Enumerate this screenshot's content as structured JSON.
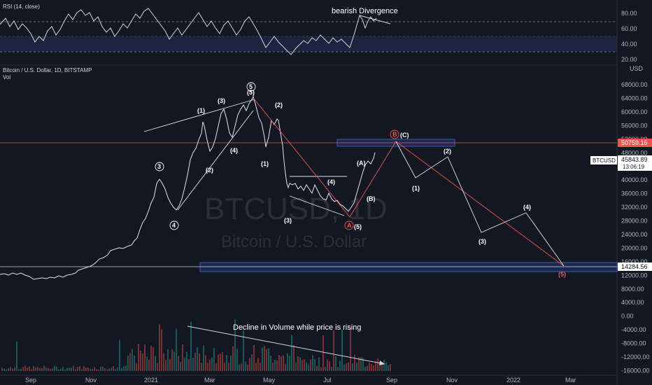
{
  "rsi": {
    "label": "RSI (14, close)",
    "levels": [
      "80.00",
      "60.00",
      "40.00",
      "20.00"
    ],
    "annotation": "bearish Divergence"
  },
  "symbol": {
    "title": "Bitcoin / U.S. Dollar, 1D, BITSTAMP",
    "vol_label": "Vol",
    "watermark_ticker": "BTCUSD, 1D",
    "watermark_name": "Bitcoin / U.S. Dollar"
  },
  "price_axis": {
    "currency": "USD",
    "labels": [
      "68000.00",
      "64000.00",
      "60000.00",
      "56000.00",
      "52000.00",
      "48000.00",
      "44000.00",
      "40000.00",
      "36000.00",
      "32000.00",
      "28000.00",
      "24000.00",
      "20000.00",
      "16000.00",
      "12000.00",
      "8000.00",
      "4000.00",
      "0.00",
      "-4000.00",
      "-8000.00",
      "-12000.00",
      "-16000.00"
    ],
    "resistance_tag": "50759.16",
    "current_symbol": "BTCUSD",
    "current_price": "45843.89",
    "countdown": "13:06:19",
    "support_tag": "14284.56"
  },
  "time_axis": [
    "Sep",
    "Nov",
    "2021",
    "Mar",
    "May",
    "Jul",
    "Sep",
    "Nov",
    "2022",
    "Mar"
  ],
  "waves": {
    "circle3": "3",
    "circle4": "4",
    "circle5": "5",
    "paren5_top": "(5)",
    "w1": "(1)",
    "w2": "(2)",
    "w3": "(3)",
    "w4": "(4)",
    "b1": "(1)",
    "b2": "(2)",
    "b3": "(3)",
    "b4": "(4)",
    "circleA": "A",
    "a5": "(5)",
    "pA": "(A)",
    "pB": "(B)",
    "circleB": "B",
    "pC": "(C)",
    "f1": "(1)",
    "f2": "(2)",
    "f3": "(3)",
    "f4": "(4)",
    "f5": "(5)"
  },
  "volume": {
    "annotation": "Decline in Volume while price is rising"
  },
  "colors": {
    "background": "#131722",
    "grid": "#1e222d",
    "price": "#d1d4dc",
    "red": "#ef5350",
    "box_fill": "#1c2b5a",
    "box_stroke": "#3d5aa8"
  }
}
